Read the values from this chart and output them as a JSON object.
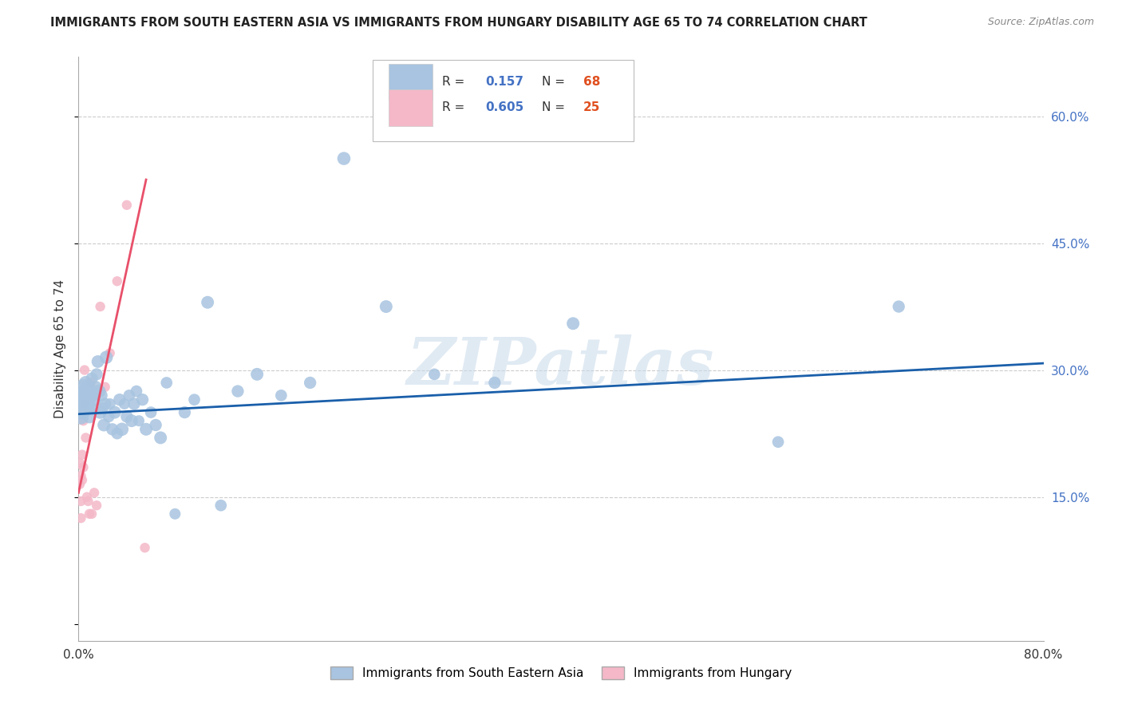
{
  "title": "IMMIGRANTS FROM SOUTH EASTERN ASIA VS IMMIGRANTS FROM HUNGARY DISABILITY AGE 65 TO 74 CORRELATION CHART",
  "source": "Source: ZipAtlas.com",
  "ylabel": "Disability Age 65 to 74",
  "y_ticks": [
    0.0,
    0.15,
    0.3,
    0.45,
    0.6
  ],
  "y_tick_labels": [
    "",
    "15.0%",
    "30.0%",
    "45.0%",
    "60.0%"
  ],
  "xlim": [
    0.0,
    0.8
  ],
  "ylim": [
    -0.02,
    0.67
  ],
  "watermark": "ZIPatlas",
  "series": [
    {
      "name": "Immigrants from South Eastern Asia",
      "R": 0.157,
      "N": 68,
      "color": "#a8c4e0",
      "line_color": "#1a5faa",
      "x": [
        0.001,
        0.002,
        0.002,
        0.003,
        0.003,
        0.004,
        0.004,
        0.005,
        0.005,
        0.006,
        0.006,
        0.007,
        0.007,
        0.008,
        0.008,
        0.009,
        0.009,
        0.01,
        0.01,
        0.011,
        0.012,
        0.013,
        0.014,
        0.015,
        0.016,
        0.017,
        0.018,
        0.019,
        0.02,
        0.021,
        0.022,
        0.023,
        0.025,
        0.026,
        0.028,
        0.03,
        0.032,
        0.034,
        0.036,
        0.038,
        0.04,
        0.042,
        0.044,
        0.046,
        0.048,
        0.05,
        0.053,
        0.056,
        0.06,
        0.064,
        0.068,
        0.073,
        0.08,
        0.088,
        0.096,
        0.107,
        0.118,
        0.132,
        0.148,
        0.168,
        0.192,
        0.22,
        0.255,
        0.295,
        0.345,
        0.41,
        0.58,
        0.68
      ],
      "y": [
        0.255,
        0.265,
        0.245,
        0.27,
        0.25,
        0.28,
        0.26,
        0.255,
        0.275,
        0.265,
        0.285,
        0.255,
        0.27,
        0.26,
        0.28,
        0.245,
        0.265,
        0.255,
        0.275,
        0.29,
        0.27,
        0.265,
        0.28,
        0.295,
        0.31,
        0.275,
        0.25,
        0.27,
        0.255,
        0.235,
        0.26,
        0.315,
        0.245,
        0.26,
        0.23,
        0.25,
        0.225,
        0.265,
        0.23,
        0.26,
        0.245,
        0.27,
        0.24,
        0.26,
        0.275,
        0.24,
        0.265,
        0.23,
        0.25,
        0.235,
        0.22,
        0.285,
        0.13,
        0.25,
        0.265,
        0.38,
        0.14,
        0.275,
        0.295,
        0.27,
        0.285,
        0.55,
        0.375,
        0.295,
        0.285,
        0.355,
        0.215,
        0.375
      ],
      "sizes": [
        350,
        250,
        200,
        220,
        180,
        200,
        180,
        140,
        160,
        180,
        150,
        190,
        165,
        155,
        140,
        150,
        135,
        158,
        142,
        120,
        130,
        140,
        130,
        120,
        130,
        145,
        138,
        122,
        112,
        132,
        120,
        140,
        112,
        102,
        122,
        132,
        112,
        122,
        142,
        102,
        122,
        112,
        132,
        122,
        112,
        102,
        122,
        132,
        112,
        122,
        132,
        112,
        102,
        122,
        112,
        132,
        112,
        122,
        132,
        112,
        122,
        142,
        132,
        112,
        122,
        132,
        112,
        122
      ],
      "trend_x": [
        0.0,
        0.8
      ],
      "trend_y": [
        0.248,
        0.308
      ],
      "trend_style": "-"
    },
    {
      "name": "Immigrants from Hungary",
      "R": 0.605,
      "N": 25,
      "color": "#f4b8c8",
      "line_color": "#e8506a",
      "x": [
        0.001,
        0.001,
        0.002,
        0.002,
        0.002,
        0.003,
        0.003,
        0.004,
        0.004,
        0.005,
        0.005,
        0.006,
        0.007,
        0.008,
        0.009,
        0.01,
        0.011,
        0.013,
        0.015,
        0.018,
        0.022,
        0.026,
        0.032,
        0.04,
        0.055
      ],
      "y": [
        0.19,
        0.165,
        0.175,
        0.145,
        0.125,
        0.2,
        0.17,
        0.24,
        0.185,
        0.26,
        0.3,
        0.22,
        0.15,
        0.145,
        0.13,
        0.285,
        0.13,
        0.155,
        0.14,
        0.375,
        0.28,
        0.32,
        0.405,
        0.495,
        0.09
      ],
      "sizes": [
        80,
        80,
        80,
        80,
        80,
        80,
        80,
        80,
        80,
        80,
        80,
        80,
        80,
        80,
        80,
        80,
        80,
        80,
        80,
        80,
        80,
        80,
        80,
        80,
        80
      ],
      "trend_x": [
        0.0,
        0.056
      ],
      "trend_y": [
        0.155,
        0.525
      ],
      "trend_style": "-"
    }
  ],
  "title_fontsize": 10.5,
  "axis_label_fontsize": 11,
  "tick_fontsize": 11,
  "right_tick_color": "#4472c4",
  "grid_color": "#cccccc",
  "background_color": "#ffffff",
  "legend_R_color": "#4472c4",
  "legend_N_color": "#e05020"
}
